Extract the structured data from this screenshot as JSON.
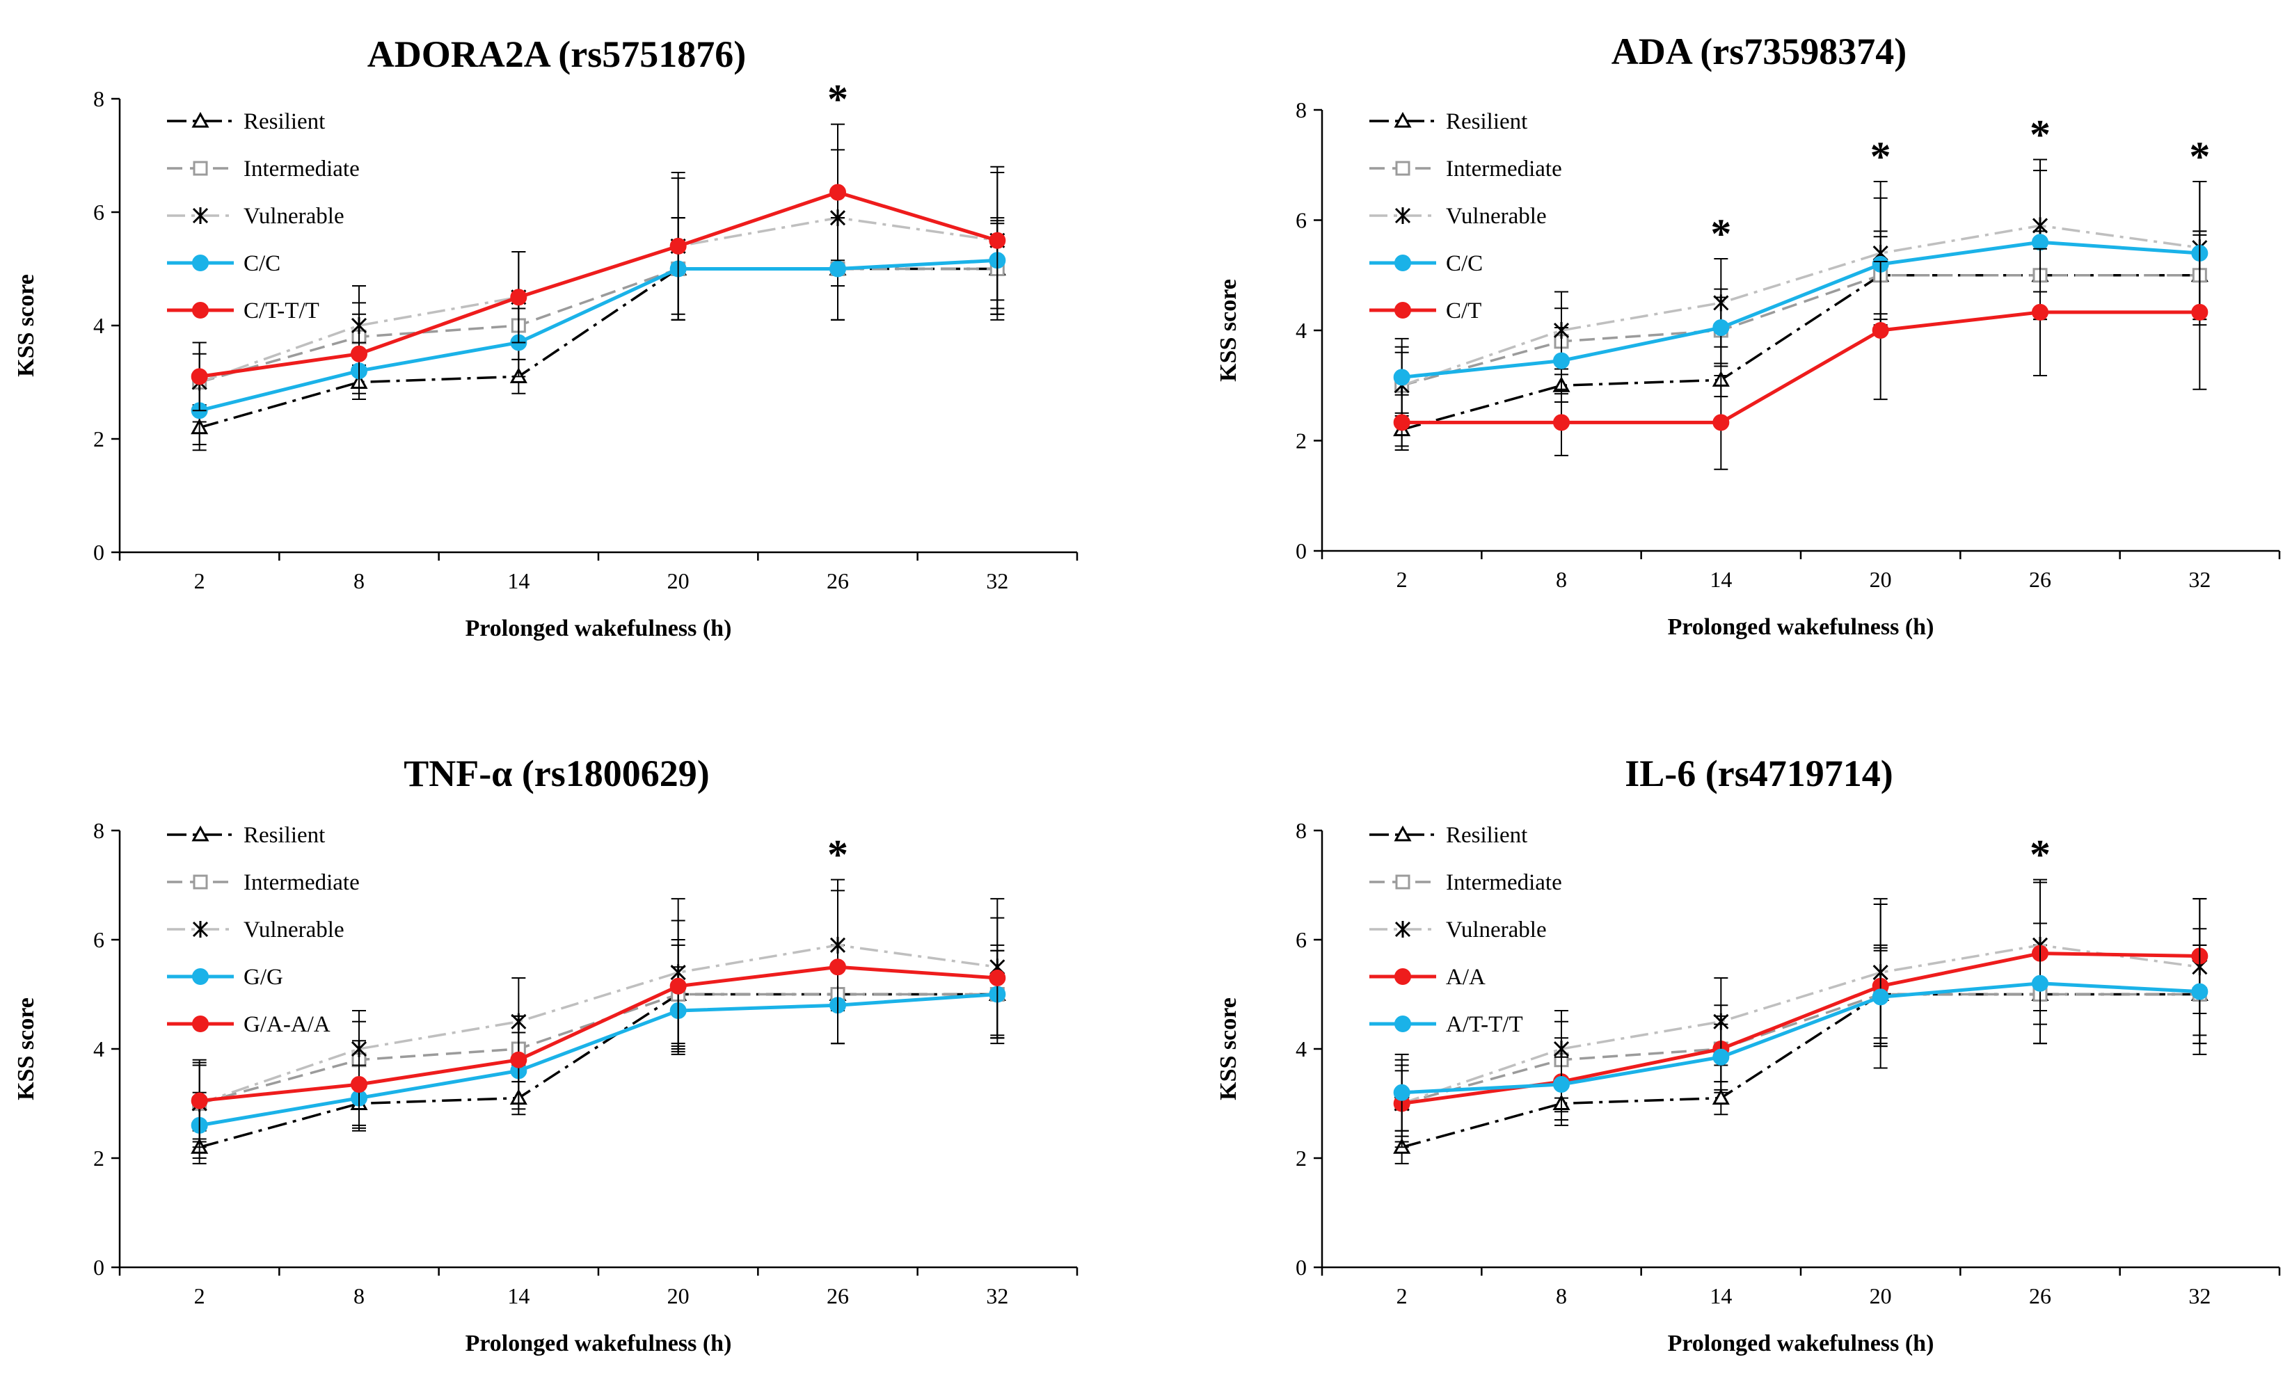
{
  "colors": {
    "resilient": "#000000",
    "intermediate": "#9b9b9b",
    "vulnerable": "#bfbfbf",
    "blue": "#1ab2e8",
    "red": "#ee1c1c"
  },
  "chart_data": [
    {
      "type": "line",
      "title": "ADORA2A (rs5751876)",
      "xlabel": "Prolonged wakefulness (h)",
      "ylabel": "KSS score",
      "categories": [
        "2",
        "8",
        "14",
        "20",
        "26",
        "32"
      ],
      "ylim": [
        0,
        8
      ],
      "yticks": [
        "0",
        "2",
        "4",
        "6",
        "8"
      ],
      "significance": [
        false,
        false,
        false,
        false,
        true,
        false
      ],
      "significance_mark": "*",
      "series": [
        {
          "name": "Resilient",
          "style": "resilient",
          "values": [
            2.2,
            3.0,
            3.1,
            5.0,
            5.0,
            5.0
          ],
          "err": [
            0.4,
            0.3,
            0.3,
            0.9,
            0.9,
            0.9
          ]
        },
        {
          "name": "Intermediate",
          "style": "intermediate",
          "values": [
            3.0,
            3.8,
            4.0,
            5.0,
            5.0,
            5.0
          ],
          "err": [
            0.5,
            0.6,
            0.6,
            0.9,
            0.9,
            0.8
          ]
        },
        {
          "name": "Vulnerable",
          "style": "vulnerable",
          "values": [
            3.0,
            4.0,
            4.5,
            5.4,
            5.9,
            5.5
          ],
          "err": [
            0.7,
            0.7,
            0.8,
            1.2,
            1.2,
            1.2
          ]
        },
        {
          "name": "C/C",
          "style": "blue",
          "values": [
            2.5,
            3.2,
            3.7,
            5.0,
            5.0,
            5.15
          ],
          "err": [
            0.6,
            0.5,
            0.6,
            0.9,
            0.9,
            0.7
          ]
        },
        {
          "name": "C/T-T/T",
          "style": "red",
          "values": [
            3.1,
            3.5,
            4.5,
            5.4,
            6.35,
            5.5
          ],
          "err": [
            0.6,
            0.7,
            0.8,
            1.3,
            1.2,
            1.3
          ]
        }
      ]
    },
    {
      "type": "line",
      "title": "ADA (rs73598374)",
      "xlabel": "Prolonged wakefulness (h)",
      "ylabel": "KSS score",
      "categories": [
        "2",
        "8",
        "14",
        "20",
        "26",
        "32"
      ],
      "ylim": [
        0,
        8
      ],
      "yticks": [
        "0",
        "2",
        "4",
        "6",
        "8"
      ],
      "significance": [
        false,
        false,
        true,
        true,
        true,
        true
      ],
      "significance_mark": "*",
      "series": [
        {
          "name": "Resilient",
          "style": "resilient",
          "values": [
            2.2,
            3.0,
            3.1,
            5.0,
            5.0,
            5.0
          ],
          "err": [
            0.3,
            0.3,
            0.3,
            0.7,
            0.8,
            0.8
          ]
        },
        {
          "name": "Intermediate",
          "style": "intermediate",
          "values": [
            3.0,
            3.8,
            4.0,
            5.0,
            5.0,
            5.0
          ],
          "err": [
            0.6,
            0.6,
            0.6,
            0.8,
            0.8,
            0.8
          ]
        },
        {
          "name": "Vulnerable",
          "style": "vulnerable",
          "values": [
            3.0,
            4.0,
            4.5,
            5.4,
            5.9,
            5.5
          ],
          "err": [
            0.7,
            0.7,
            0.8,
            1.3,
            1.2,
            1.2
          ]
        },
        {
          "name": "C/C",
          "style": "blue",
          "values": [
            3.15,
            3.45,
            4.05,
            5.2,
            5.6,
            5.4
          ],
          "err": [
            0.7,
            0.6,
            0.7,
            1.2,
            1.3,
            1.3
          ]
        },
        {
          "name": "C/T",
          "style": "red",
          "values": [
            2.33,
            2.33,
            2.33,
            4.0,
            4.33,
            4.33
          ],
          "err": [
            0.5,
            0.6,
            0.85,
            1.25,
            1.15,
            1.4
          ]
        }
      ]
    },
    {
      "type": "line",
      "title": "TNF-α (rs1800629)",
      "xlabel": "Prolonged wakefulness (h)",
      "ylabel": "KSS score",
      "categories": [
        "2",
        "8",
        "14",
        "20",
        "26",
        "32"
      ],
      "ylim": [
        0,
        8
      ],
      "yticks": [
        "0",
        "2",
        "4",
        "6",
        "8"
      ],
      "significance": [
        false,
        false,
        false,
        false,
        true,
        false
      ],
      "significance_mark": "*",
      "series": [
        {
          "name": "Resilient",
          "style": "resilient",
          "values": [
            2.2,
            3.0,
            3.1,
            5.0,
            5.0,
            5.0
          ],
          "err": [
            0.3,
            0.4,
            0.3,
            0.9,
            0.9,
            0.8
          ]
        },
        {
          "name": "Intermediate",
          "style": "intermediate",
          "values": [
            3.0,
            3.8,
            4.0,
            5.0,
            5.0,
            5.0
          ],
          "err": [
            0.7,
            0.7,
            0.6,
            1.0,
            0.9,
            0.9
          ]
        },
        {
          "name": "Vulnerable",
          "style": "vulnerable",
          "values": [
            3.0,
            4.0,
            4.5,
            5.4,
            5.9,
            5.5
          ],
          "err": [
            0.8,
            0.7,
            0.8,
            1.35,
            1.2,
            1.25
          ]
        },
        {
          "name": "G/G",
          "style": "blue",
          "values": [
            2.6,
            3.1,
            3.6,
            4.7,
            4.8,
            5.0
          ],
          "err": [
            0.6,
            0.6,
            0.7,
            0.8,
            0.7,
            0.8
          ]
        },
        {
          "name": "G/A-A/A",
          "style": "red",
          "values": [
            3.05,
            3.35,
            3.8,
            5.15,
            5.5,
            5.3
          ],
          "err": [
            0.7,
            0.8,
            0.8,
            1.2,
            1.4,
            1.1
          ]
        }
      ]
    },
    {
      "type": "line",
      "title": "IL-6 (rs4719714)",
      "xlabel": "Prolonged wakefulness (h)",
      "ylabel": "KSS score",
      "categories": [
        "2",
        "8",
        "14",
        "20",
        "26",
        "32"
      ],
      "ylim": [
        0,
        8
      ],
      "yticks": [
        "0",
        "2",
        "4",
        "6",
        "8"
      ],
      "significance": [
        false,
        false,
        false,
        false,
        true,
        false
      ],
      "significance_mark": "*",
      "series": [
        {
          "name": "Resilient",
          "style": "resilient",
          "values": [
            2.2,
            3.0,
            3.1,
            5.0,
            5.0,
            5.0
          ],
          "err": [
            0.3,
            0.3,
            0.3,
            0.8,
            0.9,
            0.9
          ]
        },
        {
          "name": "Intermediate",
          "style": "intermediate",
          "values": [
            3.0,
            3.8,
            4.0,
            5.0,
            5.0,
            5.0
          ],
          "err": [
            0.7,
            0.7,
            0.6,
            0.9,
            0.9,
            0.9
          ]
        },
        {
          "name": "Vulnerable",
          "style": "vulnerable",
          "values": [
            3.0,
            4.0,
            4.5,
            5.4,
            5.9,
            5.5
          ],
          "err": [
            0.8,
            0.7,
            0.8,
            1.35,
            1.2,
            1.25
          ]
        },
        {
          "name": "A/A",
          "style": "red",
          "values": [
            3.0,
            3.4,
            4.0,
            5.15,
            5.75,
            5.7
          ],
          "err": [
            0.6,
            0.8,
            0.8,
            1.5,
            1.3,
            1.05
          ]
        },
        {
          "name": "A/T-T/T",
          "style": "blue",
          "values": [
            3.2,
            3.35,
            3.85,
            4.95,
            5.2,
            5.05
          ],
          "err": [
            0.7,
            0.5,
            0.6,
            0.9,
            1.1,
            1.15
          ]
        }
      ]
    }
  ]
}
